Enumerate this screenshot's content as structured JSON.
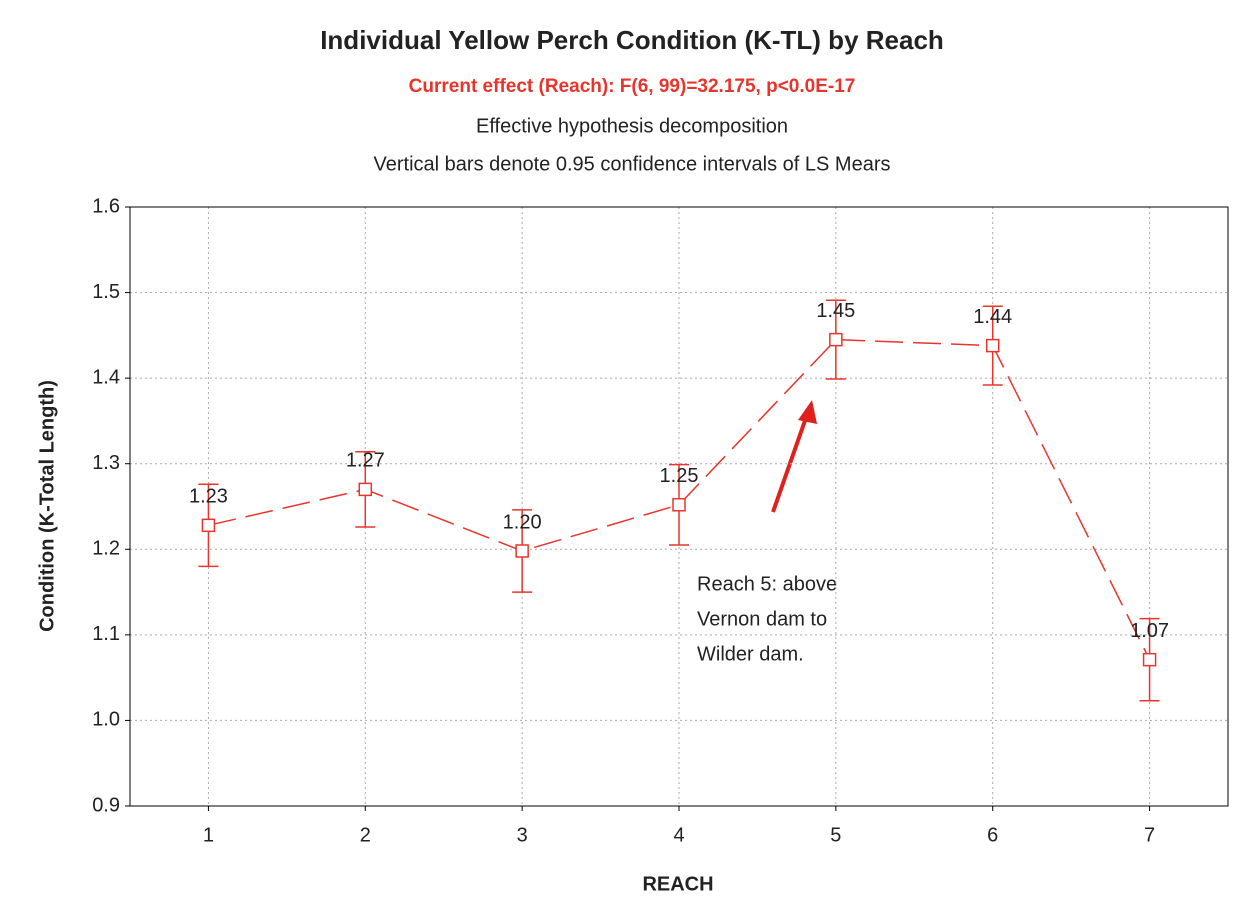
{
  "chart_data": {
    "type": "line",
    "title": "Individual Yellow Perch Condition (K-TL) by Reach",
    "subtitle": "Current effect (Reach): F(6, 99)=32.175, p<0.0E-17",
    "notes": [
      "Effective hypothesis decomposition",
      "Vertical bars denote 0.95 confidence intervals of LS Mears"
    ],
    "x_label": "REACH",
    "y_label": "Condition (K-Total Length)",
    "x": [
      1,
      2,
      3,
      4,
      5,
      6,
      7
    ],
    "series": [
      {
        "color": "#e8342c",
        "values": [
          1.228,
          1.27,
          1.198,
          1.252,
          1.445,
          1.438,
          1.071
        ],
        "value_labels": [
          "1.23",
          "1.27",
          "1.20",
          "1.25",
          "1.45",
          "1.44",
          "1.07"
        ],
        "errors": [
          0.048,
          0.044,
          0.048,
          0.047,
          0.046,
          0.046,
          0.048
        ]
      }
    ],
    "xlim": [
      0.5,
      7.5
    ],
    "xticks": [
      1,
      2,
      3,
      4,
      5,
      6,
      7
    ],
    "ylim": [
      0.9,
      1.6
    ],
    "yticks": [
      0.9,
      {
        "value": 1,
        "label": "1.0"
      },
      1.1,
      1.2,
      1.3,
      1.4,
      1.5,
      1.6
    ],
    "grid": true,
    "annotation": [
      "Reach 5: above",
      "Vernon dam to",
      "Wilder dam."
    ]
  }
}
